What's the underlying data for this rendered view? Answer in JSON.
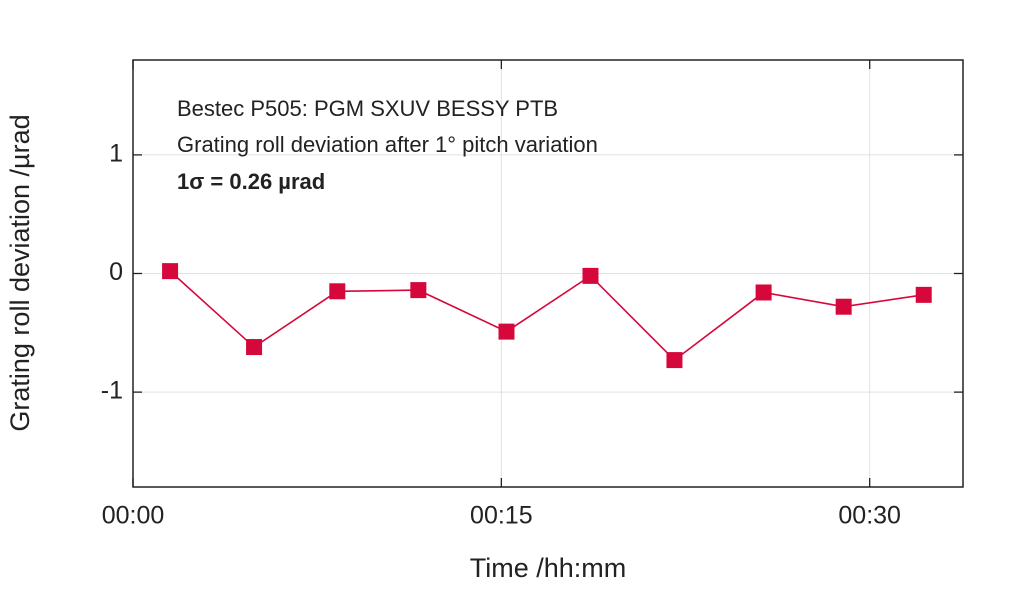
{
  "chart_data": {
    "type": "line",
    "annotations": [
      "Bestec P505: PGM SXUV BESSY PTB",
      "Grating roll deviation after 1° pitch variation",
      "1σ = 0.26 µrad"
    ],
    "x_label": "Time /hh:mm",
    "y_label": "Grating roll deviation /µrad",
    "x": [
      1.51,
      4.93,
      8.32,
      11.62,
      15.21,
      18.63,
      22.05,
      25.68,
      28.94,
      32.2
    ],
    "series": [
      {
        "color": "#d6083b",
        "values": [
          0.02,
          -0.62,
          -0.15,
          -0.14,
          -0.49,
          -0.02,
          -0.73,
          -0.16,
          -0.28,
          -0.18
        ]
      }
    ],
    "xlim": [
      0,
      33.8
    ],
    "xticks": [
      {
        "value": 0,
        "label": "00:00"
      },
      {
        "value": 15,
        "label": "00:15"
      },
      {
        "value": 30,
        "label": "00:30"
      }
    ],
    "ylim": [
      -1.8,
      1.8
    ],
    "yticks": [
      -1,
      0,
      1
    ],
    "grid": true
  }
}
